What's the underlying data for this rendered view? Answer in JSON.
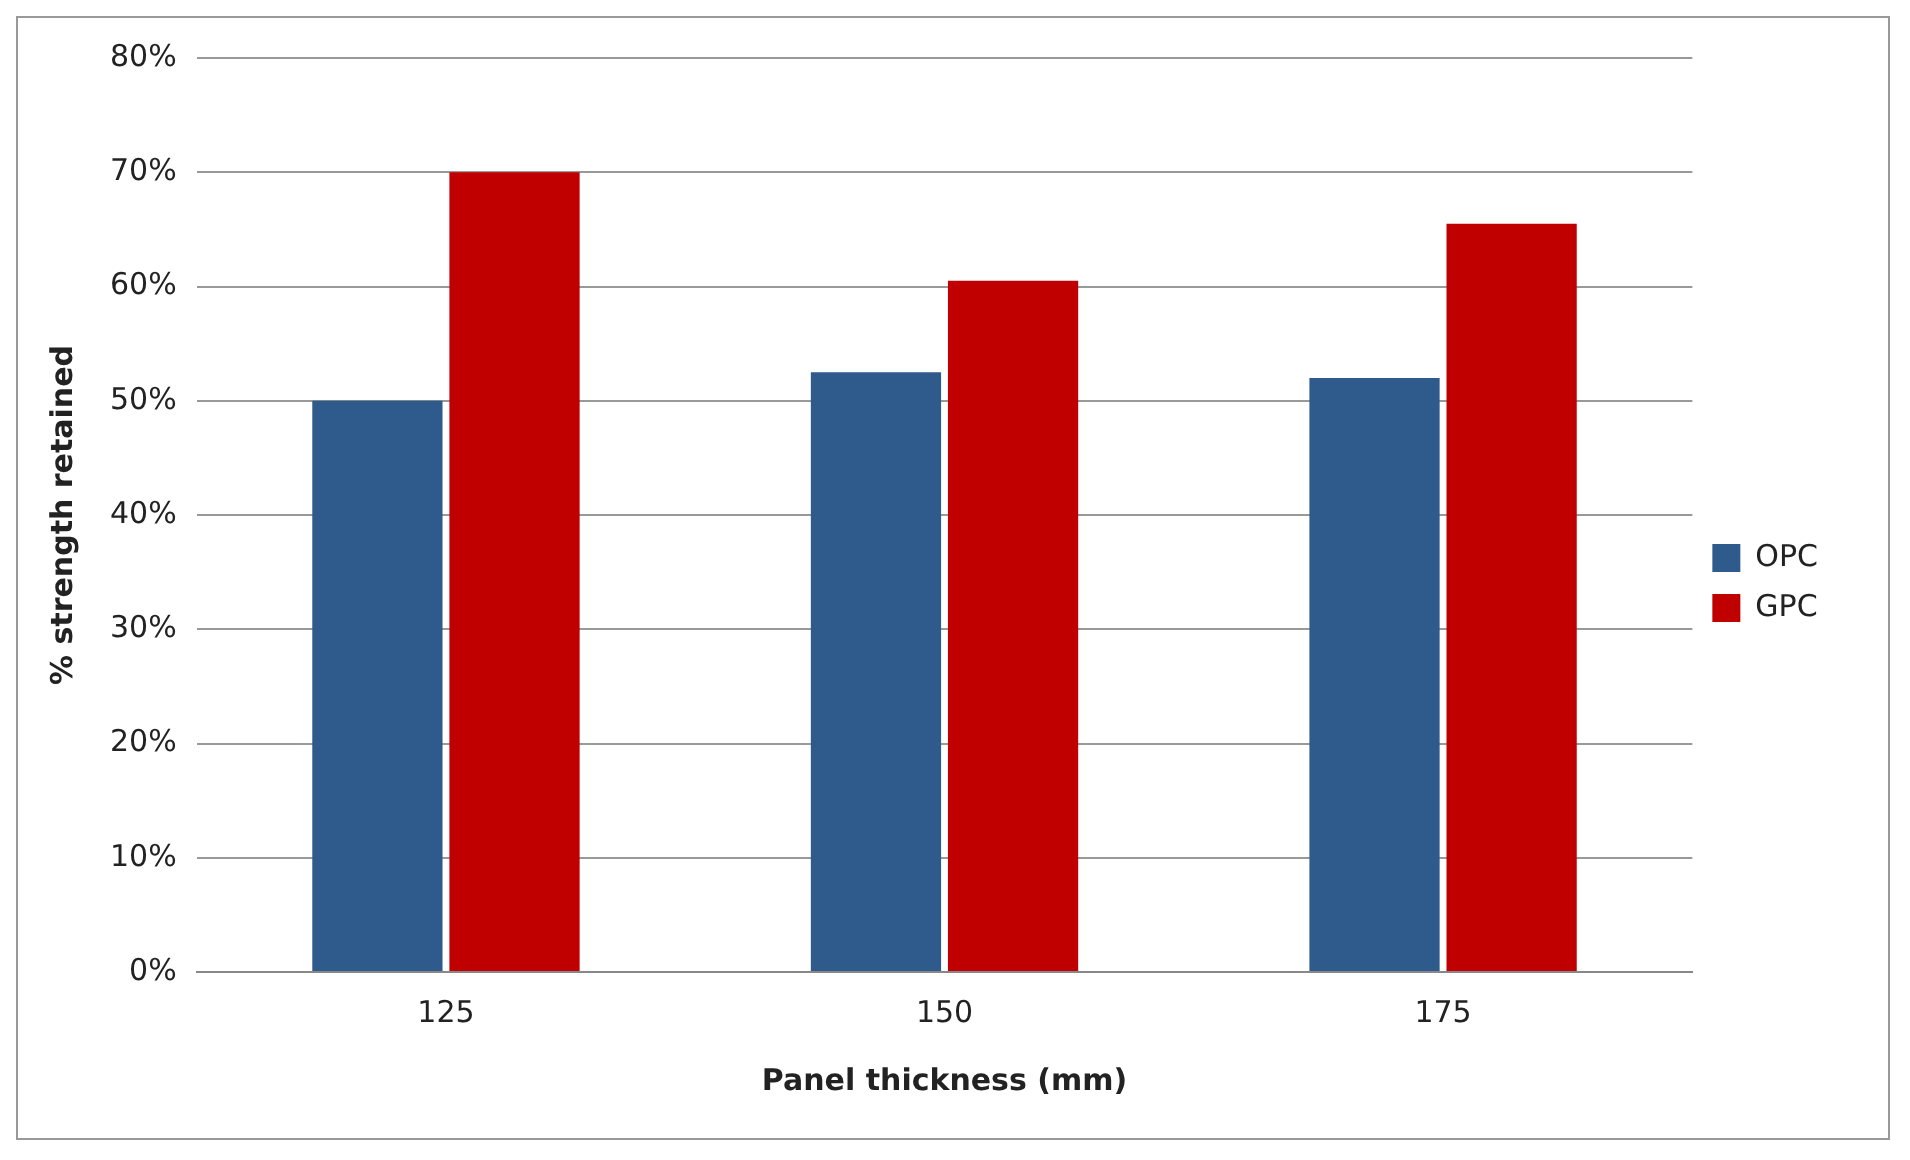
{
  "chart_data": {
    "type": "bar",
    "xlabel": "Panel thickness (mm)",
    "ylabel": "% strength retained",
    "categories": [
      "125",
      "150",
      "175"
    ],
    "series": [
      {
        "name": "OPC",
        "color": "#2f5b8c",
        "values": [
          50,
          52.5,
          52
        ]
      },
      {
        "name": "GPC",
        "color": "#c00000",
        "values": [
          70,
          60.5,
          65.5
        ]
      }
    ],
    "ylim": [
      0,
      80
    ],
    "yticks": [
      {
        "value": 0,
        "label": "0%"
      },
      {
        "value": 10,
        "label": "10%"
      },
      {
        "value": 20,
        "label": "20%"
      },
      {
        "value": 30,
        "label": "30%"
      },
      {
        "value": 40,
        "label": "40%"
      },
      {
        "value": 50,
        "label": "50%"
      },
      {
        "value": 60,
        "label": "60%"
      },
      {
        "value": 70,
        "label": "70%"
      },
      {
        "value": 80,
        "label": "80%"
      }
    ],
    "grid": "y",
    "legend": "right"
  }
}
